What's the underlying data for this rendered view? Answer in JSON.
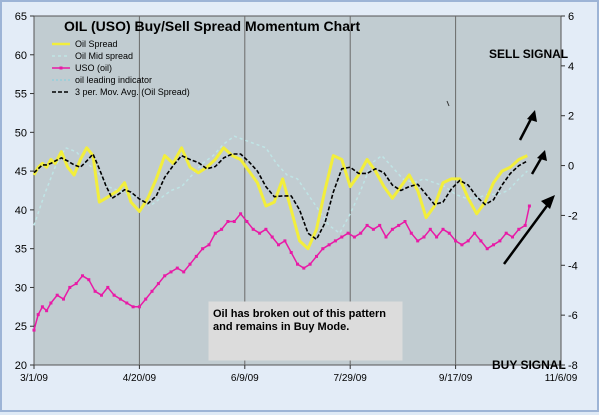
{
  "chart_data": {
    "type": "line",
    "title": "OIL (USO) Buy/Sell Spread Momentum Chart",
    "x_ticks": [
      "3/1/09",
      "4/20/09",
      "6/9/09",
      "7/29/09",
      "9/17/09",
      "11/6/09"
    ],
    "x_range": [
      "3/1/09",
      "11/6/09"
    ],
    "y_left_ticks": [
      "20",
      "25",
      "30",
      "35",
      "40",
      "45",
      "50",
      "55",
      "60",
      "65"
    ],
    "y_left_range": [
      20,
      65
    ],
    "y_right_ticks": [
      "-8",
      "-6",
      "-4",
      "-2",
      "0",
      "2",
      "4",
      "6"
    ],
    "y_right_range": [
      -8,
      6
    ],
    "grid": "vertical",
    "legend_position": "top-left",
    "colors": {
      "plot_bg": "#c1ccd1",
      "oil_spread": "#f2ee3c",
      "oil_mid_spread": "#bfe5e6",
      "uso": "#e81aa6",
      "leading": "#7fcfe0",
      "mov_avg": "#000000"
    },
    "series": [
      {
        "name": "Oil Spread",
        "axis": "left",
        "x": [
          "3/1/09",
          "3/3/09",
          "3/5/09",
          "3/7/09",
          "3/9/09",
          "3/11/09",
          "3/14/09",
          "3/17/09",
          "3/20/09",
          "3/23/09",
          "3/26/09",
          "3/29/09",
          "4/1/09",
          "4/4/09",
          "4/7/09",
          "4/10/09",
          "4/13/09",
          "4/16/09",
          "4/20/09",
          "4/24/09",
          "4/28/09",
          "5/2/09",
          "5/6/09",
          "5/10/09",
          "5/14/09",
          "5/18/09",
          "5/22/09",
          "5/26/09",
          "5/30/09",
          "6/3/09",
          "6/7/09",
          "6/11/09",
          "6/15/09",
          "6/19/09",
          "6/23/09",
          "6/27/09",
          "7/1/09",
          "7/5/09",
          "7/9/09",
          "7/13/09",
          "7/17/09",
          "7/21/09",
          "7/25/09",
          "7/29/09",
          "8/2/09",
          "8/6/09",
          "8/10/09",
          "8/14/09",
          "8/18/09",
          "8/22/09",
          "8/26/09",
          "8/30/09",
          "9/3/09",
          "9/7/09",
          "9/11/09",
          "9/15/09",
          "9/19/09",
          "9/23/09",
          "9/27/09",
          "10/1/09",
          "10/5/09",
          "10/9/09",
          "10/13/09",
          "10/17/09",
          "10/21/09"
        ],
        "y": [
          44.5,
          45.5,
          46.0,
          45.5,
          46.5,
          46.0,
          47.5,
          45.5,
          44.5,
          46.5,
          48.0,
          47.0,
          41.0,
          41.5,
          42.0,
          42.5,
          43.5,
          41.0,
          39.8,
          41.5,
          44.0,
          47.0,
          46.0,
          48.0,
          45.5,
          44.8,
          45.5,
          46.5,
          48.0,
          47.0,
          46.5,
          45.0,
          43.5,
          40.5,
          41.0,
          44.0,
          40.0,
          36.0,
          35.0,
          37.5,
          42.5,
          47.0,
          46.5,
          43.0,
          44.5,
          46.5,
          45.0,
          43.0,
          41.5,
          43.0,
          44.5,
          42.5,
          39.0,
          40.5,
          43.5,
          44.0,
          44.0,
          41.5,
          39.5,
          41.0,
          43.5,
          45.0,
          45.5,
          46.5,
          47.0
        ]
      },
      {
        "name": "Oil Mid spread",
        "axis": "left",
        "x": [
          "3/1/09",
          "3/6/09",
          "3/11/09",
          "3/16/09",
          "3/21/09",
          "3/26/09",
          "3/31/09",
          "4/5/09",
          "4/10/09",
          "4/15/09",
          "4/20/09",
          "4/25/09",
          "4/30/09",
          "5/5/09",
          "5/10/09",
          "5/15/09",
          "5/20/09",
          "5/25/09",
          "5/30/09",
          "6/4/09",
          "6/9/09",
          "6/14/09",
          "6/19/09",
          "6/24/09",
          "6/29/09",
          "7/4/09",
          "7/9/09",
          "7/14/09",
          "7/19/09",
          "7/24/09",
          "7/29/09",
          "8/3/09",
          "8/8/09",
          "8/13/09",
          "8/18/09",
          "8/23/09",
          "8/28/09",
          "9/2/09",
          "9/7/09",
          "9/12/09",
          "9/17/09",
          "9/22/09",
          "9/27/09",
          "10/2/09",
          "10/7/09",
          "10/12/09",
          "10/17/09",
          "10/21/09"
        ],
        "y": [
          38,
          42,
          45.5,
          48,
          47.5,
          46,
          45,
          43,
          42.5,
          42,
          41.5,
          40.5,
          41.5,
          42.5,
          43,
          44.5,
          46,
          47,
          48.5,
          49.5,
          49,
          48.5,
          48,
          46,
          44.5,
          44,
          42,
          40,
          38,
          37,
          39.5,
          42.5,
          46,
          47,
          45.5,
          44,
          43.5,
          44,
          43.5,
          43,
          42,
          41.5,
          41.5,
          42,
          42,
          42.5,
          44,
          45
        ]
      },
      {
        "name": "USO (oil)",
        "axis": "left",
        "x": [
          "3/1/09",
          "3/3/09",
          "3/5/09",
          "3/7/09",
          "3/9/09",
          "3/12/09",
          "3/15/09",
          "3/18/09",
          "3/21/09",
          "3/24/09",
          "3/27/09",
          "3/30/09",
          "4/2/09",
          "4/5/09",
          "4/8/09",
          "4/11/09",
          "4/14/09",
          "4/17/09",
          "4/20/09",
          "4/23/09",
          "4/26/09",
          "4/29/09",
          "5/2/09",
          "5/5/09",
          "5/8/09",
          "5/11/09",
          "5/14/09",
          "5/17/09",
          "5/20/09",
          "5/23/09",
          "5/26/09",
          "5/29/09",
          "6/1/09",
          "6/4/09",
          "6/7/09",
          "6/10/09",
          "6/13/09",
          "6/16/09",
          "6/19/09",
          "6/22/09",
          "6/25/09",
          "6/28/09",
          "7/1/09",
          "7/4/09",
          "7/7/09",
          "7/10/09",
          "7/13/09",
          "7/16/09",
          "7/19/09",
          "7/22/09",
          "7/25/09",
          "7/28/09",
          "7/31/09",
          "8/3/09",
          "8/6/09",
          "8/9/09",
          "8/12/09",
          "8/15/09",
          "8/18/09",
          "8/21/09",
          "8/24/09",
          "8/27/09",
          "8/30/09",
          "9/2/09",
          "9/5/09",
          "9/8/09",
          "9/11/09",
          "9/14/09",
          "9/17/09",
          "9/20/09",
          "9/23/09",
          "9/26/09",
          "9/29/09",
          "10/2/09",
          "10/5/09",
          "10/8/09",
          "10/11/09",
          "10/14/09",
          "10/17/09",
          "10/20/09",
          "10/22/09"
        ],
        "y": [
          24.5,
          26.5,
          27.5,
          27,
          28,
          29,
          28.5,
          30,
          30.5,
          31.5,
          31,
          29.5,
          29,
          30,
          29,
          28.5,
          28,
          27.5,
          27.5,
          28.5,
          29.5,
          30.5,
          31.5,
          32,
          32.5,
          32,
          33,
          34,
          35,
          35.5,
          37,
          37.5,
          38.5,
          38.5,
          39.5,
          38.5,
          37.5,
          37,
          37.5,
          36.5,
          35.5,
          36,
          34.5,
          33,
          32.5,
          33,
          34,
          35,
          35.5,
          36,
          36.5,
          37,
          36.5,
          37,
          38,
          37.5,
          38,
          36.5,
          37.5,
          38,
          38.5,
          37,
          36,
          36.5,
          37.5,
          36.5,
          37.5,
          37,
          36,
          35.5,
          36,
          37,
          36,
          35,
          35.5,
          36,
          37,
          36.5,
          37.5,
          38,
          40.5
        ]
      },
      {
        "name": "oil leading indicator",
        "axis": "left",
        "x": [],
        "y": []
      },
      {
        "name": "3 per. Mov. Avg. (Oil Spread)",
        "axis": "left",
        "x": [
          "3/1/09",
          "3/3/09",
          "3/5/09",
          "3/7/09",
          "3/9/09",
          "3/11/09",
          "3/14/09",
          "3/17/09",
          "3/20/09",
          "3/23/09",
          "3/26/09",
          "3/29/09",
          "4/1/09",
          "4/4/09",
          "4/7/09",
          "4/10/09",
          "4/13/09",
          "4/16/09",
          "4/20/09",
          "4/24/09",
          "4/28/09",
          "5/2/09",
          "5/6/09",
          "5/10/09",
          "5/14/09",
          "5/18/09",
          "5/22/09",
          "5/26/09",
          "5/30/09",
          "6/3/09",
          "6/7/09",
          "6/11/09",
          "6/15/09",
          "6/19/09",
          "6/23/09",
          "6/27/09",
          "7/1/09",
          "7/5/09",
          "7/9/09",
          "7/13/09",
          "7/17/09",
          "7/21/09",
          "7/25/09",
          "7/29/09",
          "8/2/09",
          "8/6/09",
          "8/10/09",
          "8/14/09",
          "8/18/09",
          "8/22/09",
          "8/26/09",
          "8/30/09",
          "9/3/09",
          "9/7/09",
          "9/11/09",
          "9/15/09",
          "9/19/09",
          "9/23/09",
          "9/27/09",
          "10/1/09",
          "10/5/09",
          "10/9/09",
          "10/13/09",
          "10/17/09",
          "10/21/09"
        ],
        "y": [
          44.8,
          45.3,
          45.8,
          45.8,
          46.0,
          46.3,
          46.7,
          46.3,
          45.8,
          45.5,
          46.3,
          47.2,
          45.3,
          43.2,
          41.5,
          42.0,
          42.6,
          42.3,
          41.4,
          40.8,
          41.8,
          44.2,
          45.7,
          47.0,
          46.5,
          46.1,
          45.3,
          45.6,
          46.7,
          47.2,
          47.2,
          46.2,
          45.0,
          43.0,
          41.7,
          41.8,
          41.8,
          40.0,
          37.0,
          36.2,
          38.3,
          42.3,
          45.3,
          45.5,
          44.7,
          44.7,
          45.3,
          44.8,
          43.2,
          42.5,
          43.0,
          43.3,
          42.0,
          40.7,
          41.0,
          42.7,
          43.8,
          43.2,
          41.7,
          40.7,
          41.3,
          43.2,
          44.7,
          45.7,
          46.3
        ]
      }
    ],
    "annotations": {
      "sell_signal": "SELL SIGNAL",
      "buy_signal": "BUY SIGNAL",
      "note": "Oil has broken out of this pattern and remains in Buy Mode."
    }
  }
}
